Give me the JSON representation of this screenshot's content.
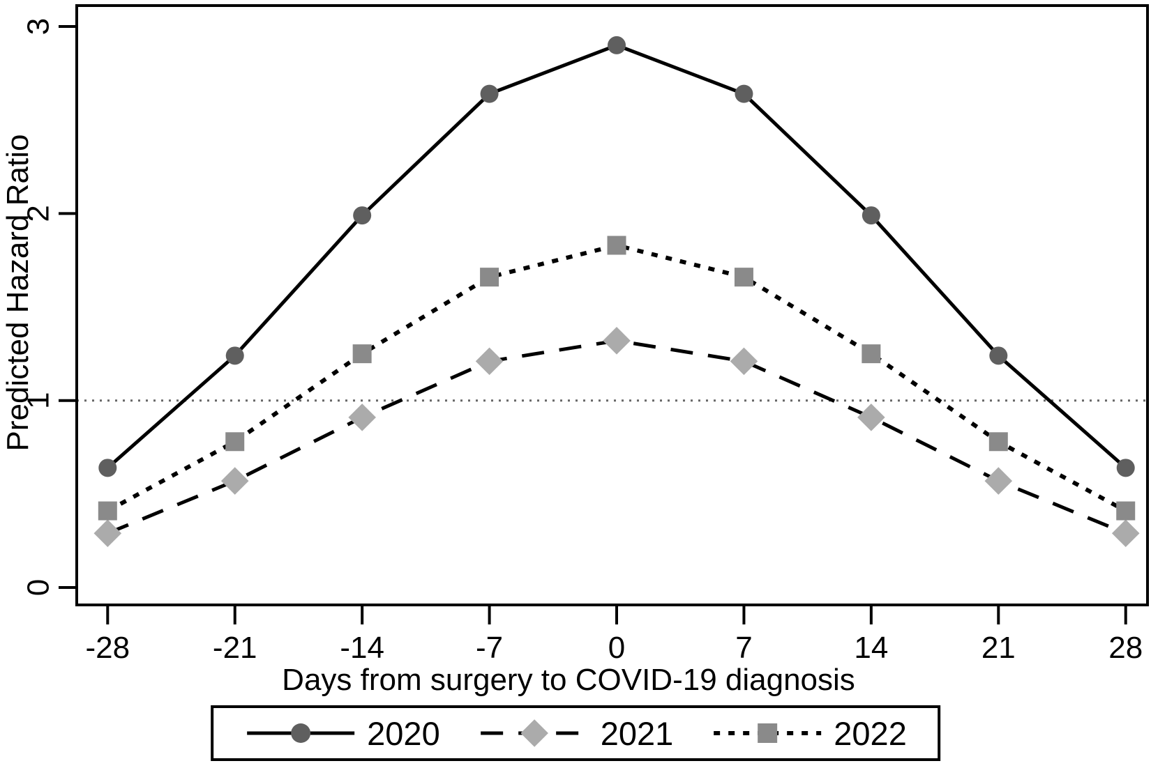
{
  "figure": {
    "background": "#ffffff",
    "border_color": "#000000",
    "text_color": "#000000"
  },
  "chart_data": {
    "type": "line",
    "title": "",
    "xlabel": "Days from surgery to COVID-19 diagnosis",
    "ylabel": "Predicted Hazard Ratio",
    "x": [
      -28,
      -21,
      -14,
      -7,
      0,
      7,
      14,
      21,
      28
    ],
    "x_ticks": [
      -28,
      -21,
      -14,
      -7,
      0,
      7,
      14,
      21,
      28
    ],
    "y_ticks": [
      0,
      1,
      2,
      3
    ],
    "xlim": [
      -29.7,
      29.2
    ],
    "ylim": [
      -0.093,
      3.112
    ],
    "grid": false,
    "legend_position": "bottom",
    "reference_line": {
      "y": 1,
      "style": "dotted",
      "color": "#666666"
    },
    "series": [
      {
        "name": "2020",
        "marker": "circle",
        "marker_color": "#5f5f5f",
        "line_style": "solid",
        "line_color": "#000000",
        "values": [
          0.64,
          1.24,
          1.99,
          2.64,
          2.9,
          2.64,
          1.99,
          1.24,
          0.64
        ]
      },
      {
        "name": "2021",
        "marker": "diamond",
        "marker_color": "#ababab",
        "line_style": "dashed",
        "line_color": "#000000",
        "values": [
          0.29,
          0.57,
          0.91,
          1.21,
          1.32,
          1.21,
          0.91,
          0.57,
          0.29
        ]
      },
      {
        "name": "2022",
        "marker": "square",
        "marker_color": "#8a8a8a",
        "line_style": "dotted",
        "line_color": "#000000",
        "values": [
          0.41,
          0.78,
          1.25,
          1.66,
          1.83,
          1.66,
          1.25,
          0.78,
          0.41
        ]
      }
    ]
  }
}
